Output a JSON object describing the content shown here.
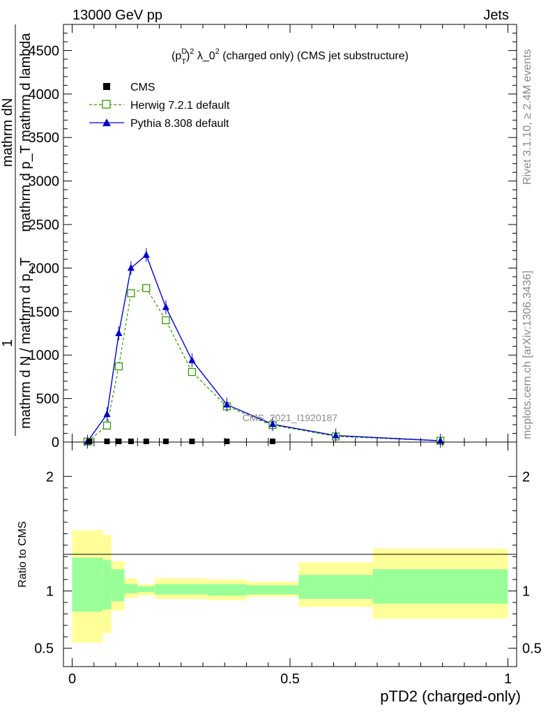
{
  "header": {
    "left": "13000 GeV pp",
    "right": "Jets"
  },
  "side_texts": {
    "rivet": "Rivet 3.1.10, ≥ 2.4M events",
    "mcplots": "mcplots.cern.ch [arXiv:1306.3436]"
  },
  "chart_data": [
    {
      "type": "line",
      "title_parts": {
        "p": "(p",
        "sup": "D",
        "sub": "T",
        "rest": ")",
        "sup2": "2",
        "lam": " λ_0",
        "sup3": "2",
        "tail": " (charged only) (CMS jet substructure)"
      },
      "ylabel_numerator": "mathrm dN",
      "ylabel_denominator": "mathrm d p_T mathrm d lambda",
      "ylabel_prefix": "1",
      "ylabel_prefix_den": "mathrm d N / mathrm d p_T",
      "watermark": "CMS_2021_I1920187",
      "ylim": [
        0,
        4800
      ],
      "xlim": [
        -0.02,
        1.02
      ],
      "yticks": [
        0,
        500,
        1000,
        1500,
        2000,
        2500,
        3000,
        3500,
        4000,
        4500
      ],
      "ytick_labels": [
        "0",
        "500",
        "1000",
        "1500",
        "2000",
        "2500",
        "3000",
        "3500",
        "4000",
        "4500"
      ],
      "legend": {
        "placement": "top-left",
        "cms": "CMS",
        "herwig": "Herwig 7.2.1 default",
        "pythia": "Pythia 8.308 default"
      },
      "series": [
        {
          "name": "CMS",
          "color": "#000000",
          "x": [
            0.04,
            0.08,
            0.107,
            0.135,
            0.17,
            0.215,
            0.275,
            0.355,
            0.46
          ],
          "y": [
            0,
            0,
            0,
            0,
            0,
            0,
            0,
            0,
            0
          ]
        },
        {
          "name": "Herwig 7.2.1 default",
          "color": "#339900",
          "x": [
            0.035,
            0.08,
            0.107,
            0.135,
            0.17,
            0.215,
            0.275,
            0.355,
            0.46,
            0.605,
            0.845
          ],
          "y": [
            5,
            190,
            870,
            1710,
            1770,
            1400,
            805,
            410,
            195,
            65,
            15
          ]
        },
        {
          "name": "Pythia 8.308 default",
          "color": "#0000cc",
          "x": [
            0.035,
            0.08,
            0.107,
            0.135,
            0.17,
            0.215,
            0.275,
            0.355,
            0.46,
            0.605,
            0.845
          ],
          "y": [
            5,
            320,
            1250,
            2000,
            2150,
            1550,
            940,
            430,
            205,
            75,
            15
          ]
        }
      ]
    },
    {
      "type": "area",
      "ylabel": "Ratio to CMS",
      "xlabel": "pTD2 (charged-only)",
      "xlim": [
        -0.02,
        1.02
      ],
      "ylim": [
        0.34,
        2.3
      ],
      "xticks": [
        0,
        0.5,
        1
      ],
      "xtick_labels": [
        "0",
        "0.5",
        "1"
      ],
      "yticks": [
        0.5,
        1,
        2
      ],
      "ytick_labels": [
        "0.5",
        "1",
        "2"
      ],
      "colors": {
        "outer": "#ffff99",
        "inner": "#99ff99"
      },
      "bands": [
        {
          "x0": 0.0,
          "x1": 0.07,
          "y_lo": 0.55,
          "y_hi": 1.53,
          "g_lo": 0.82,
          "g_hi": 1.29
        },
        {
          "x0": 0.07,
          "x1": 0.09,
          "y_lo": 0.63,
          "y_hi": 1.49,
          "g_lo": 0.84,
          "g_hi": 1.27
        },
        {
          "x0": 0.09,
          "x1": 0.12,
          "y_lo": 0.83,
          "y_hi": 1.26,
          "g_lo": 0.91,
          "g_hi": 1.19
        },
        {
          "x0": 0.12,
          "x1": 0.15,
          "y_lo": 0.94,
          "y_hi": 1.11,
          "g_lo": 0.98,
          "g_hi": 1.06
        },
        {
          "x0": 0.15,
          "x1": 0.19,
          "y_lo": 0.96,
          "y_hi": 1.06,
          "g_lo": 0.99,
          "g_hi": 1.04
        },
        {
          "x0": 0.19,
          "x1": 0.24,
          "y_lo": 0.93,
          "y_hi": 1.11,
          "g_lo": 0.97,
          "g_hi": 1.06
        },
        {
          "x0": 0.24,
          "x1": 0.31,
          "y_lo": 0.93,
          "y_hi": 1.11,
          "g_lo": 0.97,
          "g_hi": 1.06
        },
        {
          "x0": 0.31,
          "x1": 0.4,
          "y_lo": 0.92,
          "y_hi": 1.1,
          "g_lo": 0.96,
          "g_hi": 1.06
        },
        {
          "x0": 0.4,
          "x1": 0.52,
          "y_lo": 0.95,
          "y_hi": 1.08,
          "g_lo": 0.97,
          "g_hi": 1.05
        },
        {
          "x0": 0.52,
          "x1": 0.69,
          "y_lo": 0.86,
          "y_hi": 1.25,
          "g_lo": 0.93,
          "g_hi": 1.14
        },
        {
          "x0": 0.69,
          "x1": 1.0,
          "y_lo": 0.76,
          "y_hi": 1.37,
          "g_lo": 0.89,
          "g_hi": 1.19
        }
      ]
    }
  ]
}
